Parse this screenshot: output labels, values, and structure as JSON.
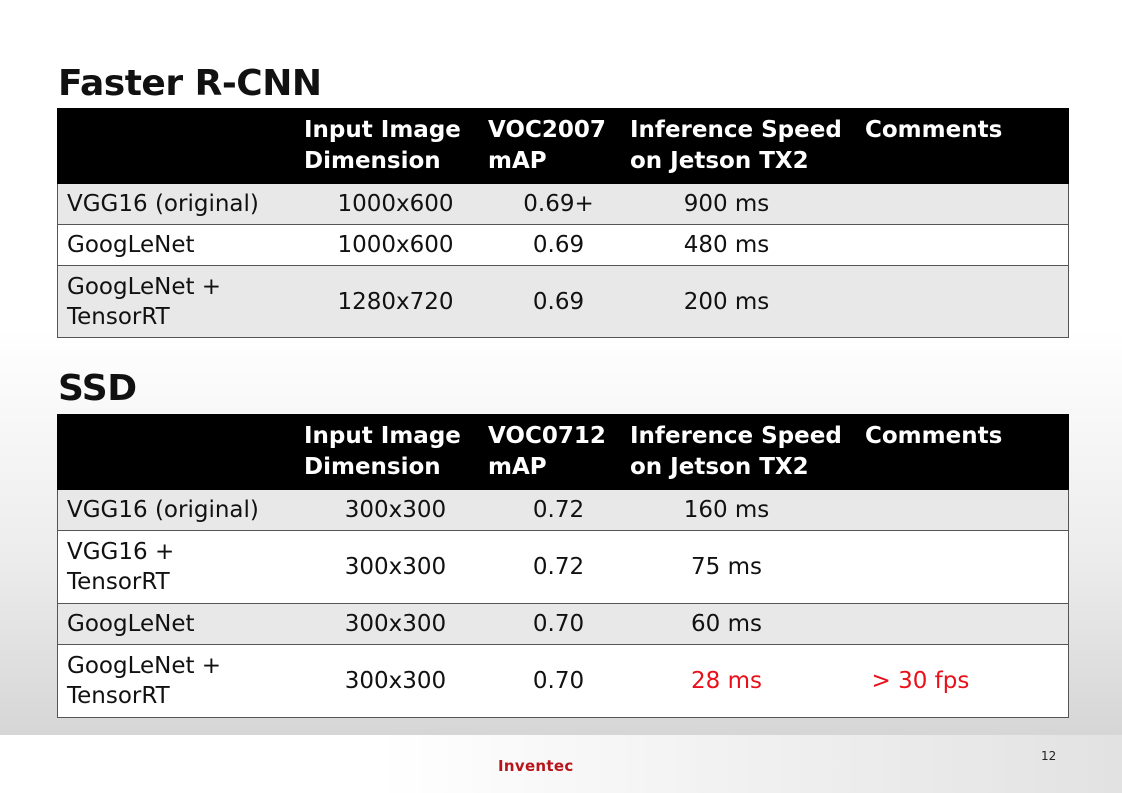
{
  "faster_rcnn": {
    "title": "Faster R-CNN",
    "headers": [
      "",
      "Input Image Dimension",
      "VOC2007 mAP",
      "Inference Speed on Jetson TX2",
      "Comments"
    ],
    "header_lines": {
      "dim": [
        "Input Image",
        "Dimension"
      ],
      "map": [
        "VOC2007",
        "mAP"
      ],
      "speed": [
        "Inference Speed",
        "on Jetson TX2"
      ],
      "comments": "Comments"
    },
    "rows": [
      {
        "model": "VGG16 (original)",
        "model_lines": [
          "VGG16 (original)"
        ],
        "dimension": "1000x600",
        "map": "0.69+",
        "speed": "900 ms",
        "comment": ""
      },
      {
        "model": "GoogLeNet",
        "model_lines": [
          "GoogLeNet"
        ],
        "dimension": "1000x600",
        "map": "0.69",
        "speed": "480 ms",
        "comment": ""
      },
      {
        "model": "GoogLeNet + TensorRT",
        "model_lines": [
          "GoogLeNet +",
          "TensorRT"
        ],
        "dimension": "1280x720",
        "map": "0.69",
        "speed": "200 ms",
        "comment": ""
      }
    ]
  },
  "ssd": {
    "title": "SSD",
    "headers": [
      "",
      "Input Image Dimension",
      "VOC0712 mAP",
      "Inference Speed on Jetson TX2",
      "Comments"
    ],
    "header_lines": {
      "dim": [
        "Input Image",
        "Dimension"
      ],
      "map": [
        "VOC0712",
        "mAP"
      ],
      "speed": [
        "Inference Speed",
        "on Jetson TX2"
      ],
      "comments": "Comments"
    },
    "rows": [
      {
        "model": "VGG16 (original)",
        "model_lines": [
          "VGG16 (original)"
        ],
        "dimension": "300x300",
        "map": "0.72",
        "speed": "160 ms",
        "comment": ""
      },
      {
        "model": "VGG16 + TensorRT",
        "model_lines": [
          "VGG16 +",
          "TensorRT"
        ],
        "dimension": "300x300",
        "map": "0.72",
        "speed": "75 ms",
        "comment": ""
      },
      {
        "model": "GoogLeNet",
        "model_lines": [
          "GoogLeNet"
        ],
        "dimension": "300x300",
        "map": "0.70",
        "speed": "60 ms",
        "comment": ""
      },
      {
        "model": "GoogLeNet + TensorRT",
        "model_lines": [
          "GoogLeNet +",
          "TensorRT"
        ],
        "dimension": "300x300",
        "map": "0.70",
        "speed": "28 ms",
        "comment": "> 30 fps",
        "highlight": true
      }
    ]
  },
  "footer": {
    "logo": "Inventec",
    "page_number": "12"
  },
  "colors": {
    "header_bg": "#000000",
    "header_text": "#ffffff",
    "row_shade": "#e8e8e8",
    "highlight": "#e8101a",
    "logo": "#b8141b"
  }
}
